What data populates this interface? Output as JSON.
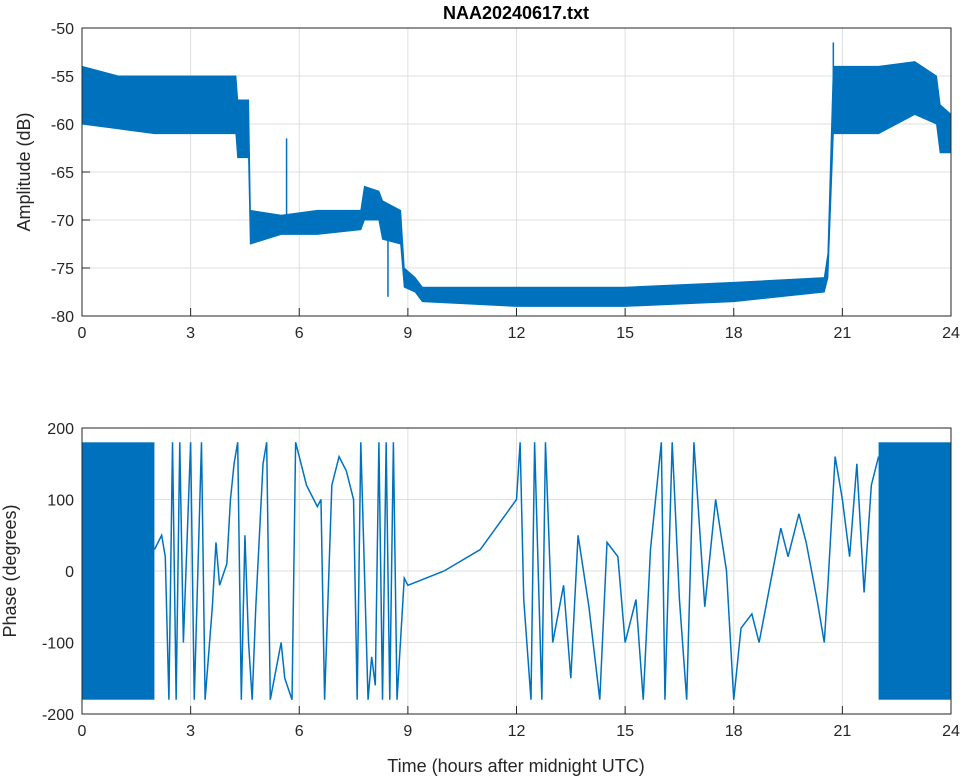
{
  "chart_data": [
    {
      "type": "line",
      "title": "NAA20240617.txt",
      "xlabel": "",
      "ylabel": "Amplitude (dB)",
      "xlim": [
        0,
        24
      ],
      "ylim": [
        -80,
        -50
      ],
      "xticks": [
        0,
        3,
        6,
        9,
        12,
        15,
        18,
        21,
        24
      ],
      "yticks": [
        -50,
        -55,
        -60,
        -65,
        -70,
        -75,
        -80
      ],
      "grid": true,
      "color": "#0072BD",
      "band": [
        [
          0,
          -60,
          -54
        ],
        [
          1,
          -60.5,
          -55
        ],
        [
          2,
          -61,
          -55
        ],
        [
          3,
          -61,
          -55
        ],
        [
          4.25,
          -61,
          -55
        ],
        [
          4.3,
          -63.5,
          -57.5
        ],
        [
          4.6,
          -63.5,
          -57.5
        ],
        [
          4.65,
          -72.5,
          -69
        ],
        [
          5.5,
          -71.5,
          -69.5
        ],
        [
          6.5,
          -71.5,
          -69
        ],
        [
          7.7,
          -71,
          -69
        ],
        [
          7.8,
          -70,
          -66.5
        ],
        [
          8.2,
          -70,
          -67
        ],
        [
          8.3,
          -72,
          -68
        ],
        [
          8.8,
          -72.5,
          -69
        ],
        [
          8.9,
          -77,
          -75
        ],
        [
          9.2,
          -77.5,
          -76
        ],
        [
          9.4,
          -78.5,
          -77
        ],
        [
          12,
          -79,
          -77
        ],
        [
          15,
          -79,
          -77
        ],
        [
          18,
          -78.5,
          -76.5
        ],
        [
          20.5,
          -77.5,
          -76
        ],
        [
          20.6,
          -76,
          -73.5
        ],
        [
          20.75,
          -61,
          -54
        ],
        [
          22,
          -61,
          -54
        ],
        [
          23,
          -59,
          -53.5
        ],
        [
          23.6,
          -60,
          -55
        ],
        [
          23.7,
          -63,
          -58
        ],
        [
          24,
          -63,
          -59
        ]
      ],
      "spikes": [
        [
          5.65,
          -61.5
        ],
        [
          8.45,
          -78
        ],
        [
          20.75,
          -51.5
        ]
      ]
    },
    {
      "type": "line",
      "title": "",
      "xlabel": "Time (hours after midnight UTC)",
      "ylabel": "Phase (degrees)",
      "xlim": [
        0,
        24
      ],
      "ylim": [
        -200,
        200
      ],
      "xticks": [
        0,
        3,
        6,
        9,
        12,
        15,
        18,
        21,
        24
      ],
      "yticks": [
        200,
        100,
        0,
        -100,
        -200
      ],
      "grid": true,
      "color": "#0072BD",
      "dense_wrap_ranges": [
        [
          0,
          2.0
        ],
        [
          22.0,
          24
        ]
      ],
      "wrap_limits": [
        -180,
        180
      ],
      "points": [
        [
          2.0,
          30
        ],
        [
          2.2,
          50
        ],
        [
          2.3,
          20
        ],
        [
          2.4,
          -180
        ],
        [
          2.5,
          180
        ],
        [
          2.6,
          -180
        ],
        [
          2.7,
          180
        ],
        [
          2.8,
          -100
        ],
        [
          3.0,
          180
        ],
        [
          3.1,
          -180
        ],
        [
          3.3,
          180
        ],
        [
          3.4,
          -180
        ],
        [
          3.6,
          -50
        ],
        [
          3.7,
          40
        ],
        [
          3.8,
          -20
        ],
        [
          4.0,
          10
        ],
        [
          4.1,
          100
        ],
        [
          4.2,
          150
        ],
        [
          4.3,
          180
        ],
        [
          4.4,
          -180
        ],
        [
          4.5,
          50
        ],
        [
          4.6,
          -100
        ],
        [
          4.7,
          -180
        ],
        [
          4.8,
          -50
        ],
        [
          5.0,
          150
        ],
        [
          5.1,
          180
        ],
        [
          5.2,
          -180
        ],
        [
          5.5,
          -100
        ],
        [
          5.6,
          -150
        ],
        [
          5.8,
          -180
        ],
        [
          5.9,
          180
        ],
        [
          6.2,
          120
        ],
        [
          6.5,
          90
        ],
        [
          6.6,
          100
        ],
        [
          6.7,
          -180
        ],
        [
          6.9,
          120
        ],
        [
          7.1,
          160
        ],
        [
          7.3,
          140
        ],
        [
          7.5,
          100
        ],
        [
          7.6,
          -180
        ],
        [
          7.7,
          180
        ],
        [
          7.9,
          -180
        ],
        [
          8.0,
          -120
        ],
        [
          8.1,
          -160
        ],
        [
          8.2,
          180
        ],
        [
          8.3,
          -180
        ],
        [
          8.4,
          180
        ],
        [
          8.5,
          -180
        ],
        [
          8.6,
          180
        ],
        [
          8.7,
          -180
        ],
        [
          8.9,
          -10
        ],
        [
          9.0,
          -20
        ],
        [
          10,
          0
        ],
        [
          11,
          30
        ],
        [
          12,
          100
        ],
        [
          12.1,
          180
        ],
        [
          12.2,
          -40
        ],
        [
          12.4,
          -180
        ],
        [
          12.5,
          180
        ],
        [
          12.7,
          -180
        ],
        [
          12.8,
          180
        ],
        [
          13.0,
          -100
        ],
        [
          13.3,
          -20
        ],
        [
          13.5,
          -150
        ],
        [
          13.7,
          50
        ],
        [
          14,
          -50
        ],
        [
          14.3,
          -180
        ],
        [
          14.5,
          40
        ],
        [
          14.8,
          20
        ],
        [
          15.0,
          -100
        ],
        [
          15.3,
          -40
        ],
        [
          15.5,
          -180
        ],
        [
          15.7,
          30
        ],
        [
          16.0,
          180
        ],
        [
          16.1,
          -180
        ],
        [
          16.3,
          180
        ],
        [
          16.5,
          -40
        ],
        [
          16.7,
          -180
        ],
        [
          16.9,
          180
        ],
        [
          17.2,
          -50
        ],
        [
          17.5,
          100
        ],
        [
          17.8,
          0
        ],
        [
          18.0,
          -180
        ],
        [
          18.2,
          -80
        ],
        [
          18.5,
          -60
        ],
        [
          18.7,
          -100
        ],
        [
          19,
          -20
        ],
        [
          19.3,
          60
        ],
        [
          19.5,
          20
        ],
        [
          19.8,
          80
        ],
        [
          20,
          40
        ],
        [
          20.3,
          -40
        ],
        [
          20.5,
          -100
        ],
        [
          20.6,
          -20
        ],
        [
          20.8,
          160
        ],
        [
          21,
          100
        ],
        [
          21.2,
          20
        ],
        [
          21.4,
          150
        ],
        [
          21.6,
          -30
        ],
        [
          21.8,
          120
        ],
        [
          22,
          160
        ]
      ]
    }
  ]
}
